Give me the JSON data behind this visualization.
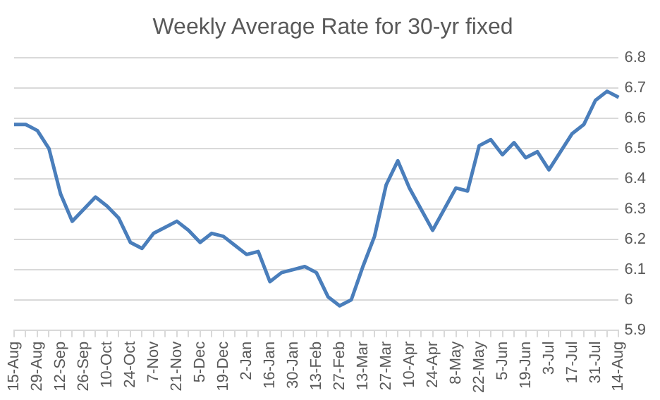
{
  "chart_data": {
    "type": "line",
    "title": "Weekly Average Rate for 30-yr fixed",
    "categories": [
      "15-Aug",
      null,
      "29-Aug",
      null,
      "12-Sep",
      null,
      "26-Sep",
      null,
      "10-Oct",
      null,
      "24-Oct",
      null,
      "7-Nov",
      null,
      "21-Nov",
      null,
      "5-Dec",
      null,
      "19-Dec",
      null,
      "2-Jan",
      null,
      "16-Jan",
      null,
      "30-Jan",
      null,
      "13-Feb",
      null,
      "27-Feb",
      null,
      "13-Mar",
      null,
      "27-Mar",
      null,
      "10-Apr",
      null,
      "24-Apr",
      null,
      "8-May",
      null,
      "22-May",
      null,
      "5-Jun",
      null,
      "19-Jun",
      null,
      "3-Jul",
      null,
      "17-Jul",
      null,
      "31-Jul",
      null,
      "14-Aug"
    ],
    "series": [
      {
        "color": "#4a7ebb",
        "values": [
          6.58,
          6.58,
          6.56,
          6.5,
          6.35,
          6.26,
          6.3,
          6.34,
          6.31,
          6.27,
          6.19,
          6.17,
          6.22,
          6.24,
          6.26,
          6.23,
          6.19,
          6.22,
          6.21,
          6.18,
          6.15,
          6.16,
          6.06,
          6.09,
          6.1,
          6.11,
          6.09,
          6.01,
          5.98,
          6.0,
          6.11,
          6.21,
          6.38,
          6.46,
          6.37,
          6.3,
          6.23,
          6.3,
          6.37,
          6.36,
          6.51,
          6.53,
          6.48,
          6.52,
          6.47,
          6.49,
          6.43,
          6.49,
          6.55,
          6.58,
          6.66,
          6.69,
          6.67
        ]
      }
    ],
    "ylim": [
      5.9,
      6.8
    ],
    "yticks": [
      5.9,
      6,
      6.1,
      6.2,
      6.3,
      6.4,
      6.5,
      6.6,
      6.7,
      6.8
    ],
    "grid": "y",
    "legend": false,
    "marker": "none",
    "line_style": "solid"
  }
}
